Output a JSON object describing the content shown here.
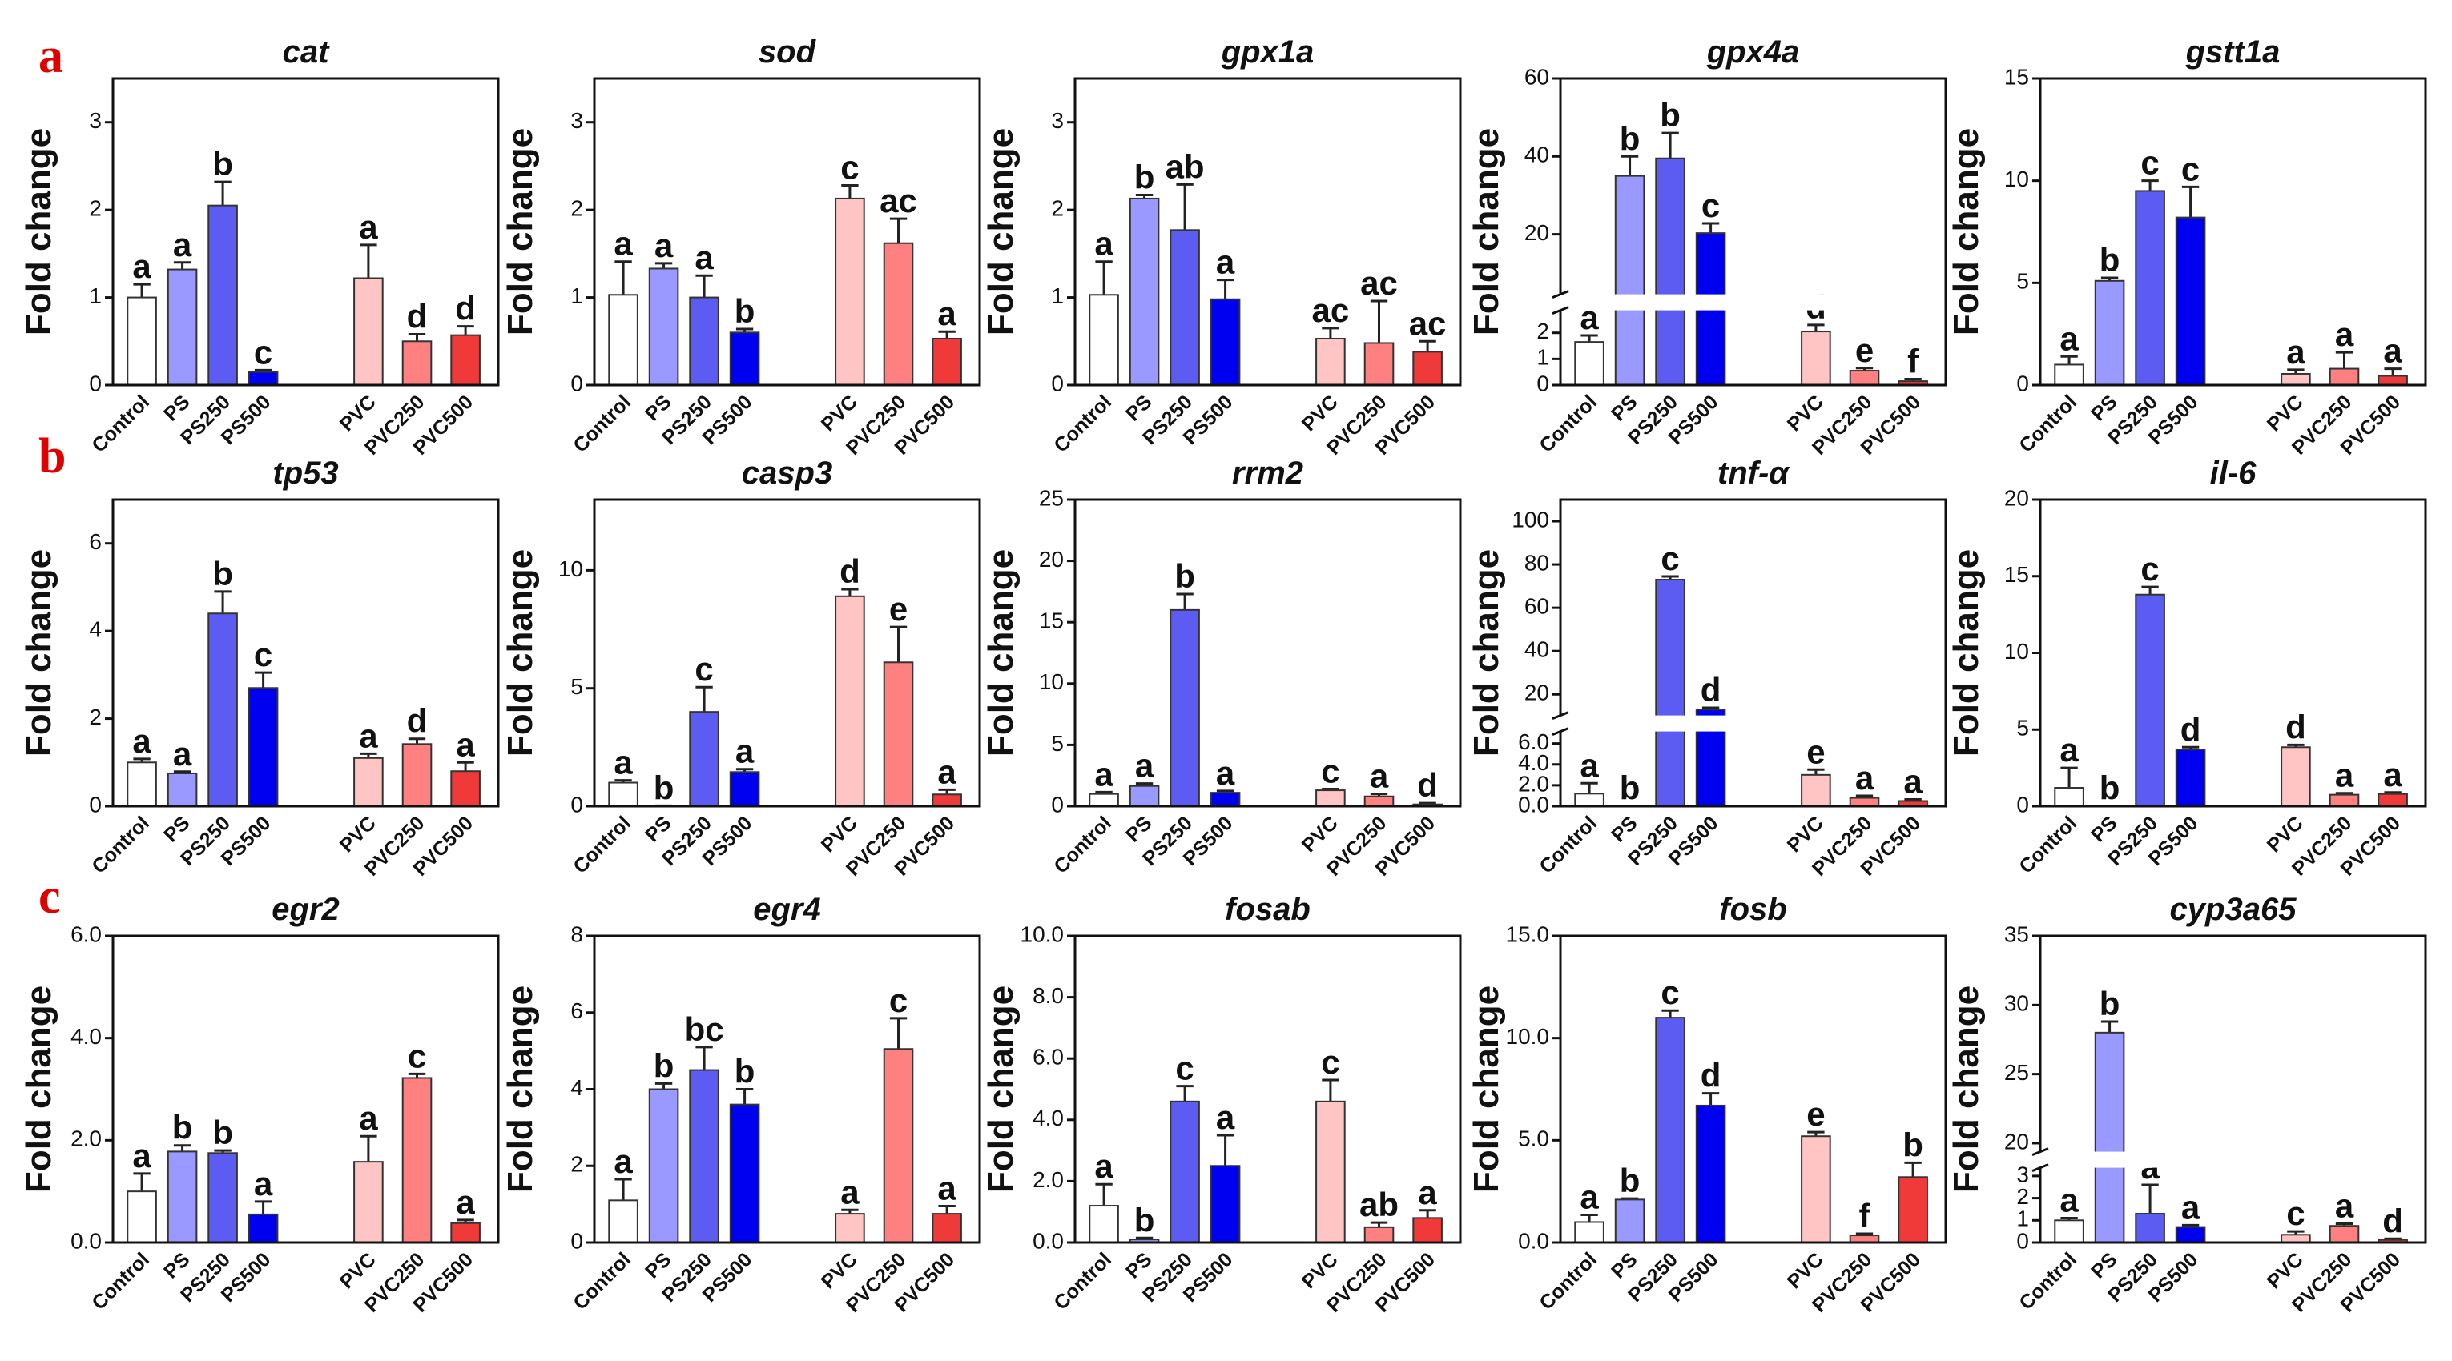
{
  "panel_labels": [
    "a",
    "b",
    "c"
  ],
  "chart_data": [
    {
      "type": "bar",
      "title": "cat",
      "ylabel": "Fold change",
      "categories": [
        "Control",
        "PS",
        "PS250",
        "PS500",
        "PVC",
        "PVC250",
        "PVC500"
      ],
      "values": [
        1.0,
        1.32,
        2.05,
        0.15,
        1.22,
        0.5,
        0.57
      ],
      "errors": [
        0.15,
        0.08,
        0.27,
        0.02,
        0.38,
        0.08,
        0.1
      ],
      "annotations": [
        "a",
        "a",
        "b",
        "c",
        "a",
        "d",
        "d"
      ],
      "colors": [
        "#ffffff",
        "#9999ff",
        "#5c5cf2",
        "#0000f0",
        "#ffc4c4",
        "#ff8080",
        "#f03a3a"
      ],
      "ylim": [
        0,
        3.5
      ],
      "yticks": [
        0,
        1,
        2,
        3
      ]
    },
    {
      "type": "bar",
      "title": "sod",
      "ylabel": "Fold change",
      "categories": [
        "Control",
        "PS",
        "PS250",
        "PS500",
        "PVC",
        "PVC250",
        "PVC500"
      ],
      "values": [
        1.03,
        1.33,
        1.0,
        0.6,
        2.13,
        1.62,
        0.53
      ],
      "errors": [
        0.38,
        0.06,
        0.25,
        0.04,
        0.15,
        0.28,
        0.08
      ],
      "annotations": [
        "a",
        "a",
        "a",
        "b",
        "c",
        "ac",
        "a"
      ],
      "colors": [
        "#ffffff",
        "#9999ff",
        "#5c5cf2",
        "#0000f0",
        "#ffc4c4",
        "#ff8080",
        "#f03a3a"
      ],
      "ylim": [
        0,
        3.5
      ],
      "yticks": [
        0,
        1,
        2,
        3
      ]
    },
    {
      "type": "bar",
      "title": "gpx1a",
      "ylabel": "Fold change",
      "categories": [
        "Control",
        "PS",
        "PS250",
        "PS500",
        "PVC",
        "PVC250",
        "PVC500"
      ],
      "values": [
        1.03,
        2.13,
        1.77,
        0.98,
        0.53,
        0.48,
        0.38
      ],
      "errors": [
        0.38,
        0.04,
        0.52,
        0.22,
        0.12,
        0.48,
        0.12
      ],
      "annotations": [
        "a",
        "b",
        "ab",
        "a",
        "ac",
        "ac",
        "ac"
      ],
      "colors": [
        "#ffffff",
        "#9999ff",
        "#5c5cf2",
        "#0000f0",
        "#ffc4c4",
        "#ff8080",
        "#f03a3a"
      ],
      "ylim": [
        0,
        3.5
      ],
      "yticks": [
        0,
        1,
        2,
        3
      ]
    },
    {
      "type": "bar",
      "title": "gpx4a",
      "ylabel": "Fold change",
      "categories": [
        "Control",
        "PS",
        "PS250",
        "PS500",
        "PVC",
        "PVC250",
        "PVC500"
      ],
      "values": [
        1.65,
        35,
        39.5,
        20.3,
        2.05,
        0.55,
        0.15
      ],
      "errors": [
        0.25,
        5,
        6.5,
        2.5,
        0.25,
        0.1,
        0.08
      ],
      "annotations": [
        "a",
        "b",
        "b",
        "c",
        "d",
        "e",
        "f"
      ],
      "colors": [
        "#ffffff",
        "#9999ff",
        "#5c5cf2",
        "#0000f0",
        "#ffc4c4",
        "#ff8080",
        "#f03a3a"
      ],
      "ylim": [
        0,
        60
      ],
      "ybreak": [
        2.8,
        5
      ],
      "yticks": [
        0,
        1,
        2,
        20,
        40,
        60
      ]
    },
    {
      "type": "bar",
      "title": "gstt1a",
      "ylabel": "Fold change",
      "categories": [
        "Control",
        "PS",
        "PS250",
        "PS500",
        "PVC",
        "PVC250",
        "PVC500"
      ],
      "values": [
        1.0,
        5.1,
        9.5,
        8.2,
        0.55,
        0.8,
        0.45
      ],
      "errors": [
        0.4,
        0.15,
        0.5,
        1.5,
        0.2,
        0.8,
        0.35
      ],
      "annotations": [
        "a",
        "b",
        "c",
        "c",
        "a",
        "a",
        "a"
      ],
      "colors": [
        "#ffffff",
        "#9999ff",
        "#5c5cf2",
        "#0000f0",
        "#ffc4c4",
        "#ff8080",
        "#f03a3a"
      ],
      "ylim": [
        0,
        15
      ],
      "yticks": [
        0,
        5,
        10,
        15
      ]
    },
    {
      "type": "bar",
      "title": "tp53",
      "ylabel": "Fold change",
      "categories": [
        "Control",
        "PS",
        "PS250",
        "PS500",
        "PVC",
        "PVC250",
        "PVC500"
      ],
      "values": [
        1.0,
        0.75,
        4.4,
        2.7,
        1.1,
        1.42,
        0.8
      ],
      "errors": [
        0.08,
        0.04,
        0.5,
        0.35,
        0.1,
        0.12,
        0.2
      ],
      "annotations": [
        "a",
        "a",
        "b",
        "c",
        "a",
        "d",
        "a"
      ],
      "colors": [
        "#ffffff",
        "#9999ff",
        "#5c5cf2",
        "#0000f0",
        "#ffc4c4",
        "#ff8080",
        "#f03a3a"
      ],
      "ylim": [
        0,
        7
      ],
      "yticks": [
        0,
        2,
        4,
        6
      ]
    },
    {
      "type": "bar",
      "title": "casp3",
      "ylabel": "Fold change",
      "categories": [
        "Control",
        "PS",
        "PS250",
        "PS500",
        "PVC",
        "PVC250",
        "PVC500"
      ],
      "values": [
        1.0,
        0.02,
        4.0,
        1.45,
        8.9,
        6.1,
        0.5
      ],
      "errors": [
        0.1,
        0,
        1.05,
        0.12,
        0.3,
        1.5,
        0.2
      ],
      "annotations": [
        "a",
        "b",
        "c",
        "a",
        "d",
        "e",
        "a"
      ],
      "colors": [
        "#ffffff",
        "#9999ff",
        "#5c5cf2",
        "#0000f0",
        "#ffc4c4",
        "#ff8080",
        "#f03a3a"
      ],
      "ylim": [
        0,
        13
      ],
      "yticks": [
        0,
        5,
        10
      ]
    },
    {
      "type": "bar",
      "title": "rrm2",
      "ylabel": "Fold change",
      "categories": [
        "Control",
        "PS",
        "PS250",
        "PS500",
        "PVC",
        "PVC250",
        "PVC500"
      ],
      "values": [
        1.0,
        1.65,
        16.0,
        1.1,
        1.3,
        0.8,
        0.15
      ],
      "errors": [
        0.15,
        0.2,
        1.3,
        0.15,
        0.1,
        0.2,
        0.1
      ],
      "annotations": [
        "a",
        "a",
        "b",
        "a",
        "c",
        "a",
        "d"
      ],
      "colors": [
        "#ffffff",
        "#9999ff",
        "#5c5cf2",
        "#0000f0",
        "#ffc4c4",
        "#ff8080",
        "#f03a3a"
      ],
      "ylim": [
        0,
        25
      ],
      "yticks": [
        0,
        5,
        10,
        15,
        20,
        25
      ]
    },
    {
      "type": "bar",
      "title": "tnf-α",
      "ylabel": "Fold change",
      "categories": [
        "Control",
        "PS",
        "PS250",
        "PS500",
        "PVC",
        "PVC250",
        "PVC500"
      ],
      "values": [
        1.2,
        0.02,
        73,
        13,
        3.0,
        0.8,
        0.5
      ],
      "errors": [
        1.0,
        0,
        1.5,
        0.8,
        0.5,
        0.2,
        0.15
      ],
      "annotations": [
        "a",
        "b",
        "c",
        "d",
        "e",
        "a",
        "a"
      ],
      "colors": [
        "#ffffff",
        "#9999ff",
        "#5c5cf2",
        "#0000f0",
        "#ffc4c4",
        "#ff8080",
        "#f03a3a"
      ],
      "ylim": [
        0,
        110
      ],
      "ybreak": [
        7,
        11
      ],
      "yticks": [
        {
          "value": 0,
          "label": "0.0"
        },
        {
          "value": 2,
          "label": "2.0"
        },
        {
          "value": 4,
          "label": "4.0"
        },
        {
          "value": 6,
          "label": "6.0"
        },
        20,
        40,
        60,
        80,
        100
      ]
    },
    {
      "type": "bar",
      "title": "il-6",
      "ylabel": "Fold change",
      "categories": [
        "Control",
        "PS",
        "PS250",
        "PS500",
        "PVC",
        "PVC250",
        "PVC500"
      ],
      "values": [
        1.2,
        0.02,
        13.8,
        3.7,
        3.85,
        0.75,
        0.8
      ],
      "errors": [
        1.3,
        0,
        0.5,
        0.15,
        0.15,
        0.1,
        0.1
      ],
      "annotations": [
        "a",
        "b",
        "c",
        "d",
        "d",
        "a",
        "a"
      ],
      "colors": [
        "#ffffff",
        "#9999ff",
        "#5c5cf2",
        "#0000f0",
        "#ffc4c4",
        "#ff8080",
        "#f03a3a"
      ],
      "ylim": [
        0,
        20
      ],
      "yticks": [
        0,
        5,
        10,
        15,
        20
      ]
    },
    {
      "type": "bar",
      "title": "egr2",
      "ylabel": "Fold change",
      "categories": [
        "Control",
        "PS",
        "PS250",
        "PS500",
        "PVC",
        "PVC250",
        "PVC500"
      ],
      "values": [
        1.0,
        1.78,
        1.75,
        0.55,
        1.58,
        3.22,
        0.38
      ],
      "errors": [
        0.35,
        0.12,
        0.05,
        0.25,
        0.5,
        0.08,
        0.06
      ],
      "annotations": [
        "a",
        "b",
        "b",
        "a",
        "a",
        "c",
        "a"
      ],
      "colors": [
        "#ffffff",
        "#9999ff",
        "#5c5cf2",
        "#0000f0",
        "#ffc4c4",
        "#ff8080",
        "#f03a3a"
      ],
      "ylim": [
        0,
        6
      ],
      "yticks": [
        {
          "value": 0,
          "label": "0.0"
        },
        {
          "value": 2,
          "label": "2.0"
        },
        {
          "value": 4,
          "label": "4.0"
        },
        {
          "value": 6,
          "label": "6.0"
        }
      ]
    },
    {
      "type": "bar",
      "title": "egr4",
      "ylabel": "Fold change",
      "categories": [
        "Control",
        "PS",
        "PS250",
        "PS500",
        "PVC",
        "PVC250",
        "PVC500"
      ],
      "values": [
        1.1,
        4.0,
        4.5,
        3.6,
        0.75,
        5.05,
        0.75
      ],
      "errors": [
        0.55,
        0.15,
        0.6,
        0.4,
        0.1,
        0.8,
        0.2
      ],
      "annotations": [
        "a",
        "b",
        "bc",
        "b",
        "a",
        "c",
        "a"
      ],
      "colors": [
        "#ffffff",
        "#9999ff",
        "#5c5cf2",
        "#0000f0",
        "#ffc4c4",
        "#ff8080",
        "#f03a3a"
      ],
      "ylim": [
        0,
        8
      ],
      "yticks": [
        0,
        2,
        4,
        6,
        8
      ]
    },
    {
      "type": "bar",
      "title": "fosab",
      "ylabel": "Fold change",
      "categories": [
        "Control",
        "PS",
        "PS250",
        "PS500",
        "PVC",
        "PVC250",
        "PVC500"
      ],
      "values": [
        1.2,
        0.1,
        4.6,
        2.5,
        4.6,
        0.5,
        0.8
      ],
      "errors": [
        0.7,
        0.05,
        0.5,
        1.0,
        0.7,
        0.15,
        0.25
      ],
      "annotations": [
        "a",
        "b",
        "c",
        "a",
        "c",
        "ab",
        "a"
      ],
      "colors": [
        "#ffffff",
        "#9999ff",
        "#5c5cf2",
        "#0000f0",
        "#ffc4c4",
        "#ff8080",
        "#f03a3a"
      ],
      "ylim": [
        0,
        10
      ],
      "yticks": [
        {
          "value": 0,
          "label": "0.0"
        },
        {
          "value": 2,
          "label": "2.0"
        },
        {
          "value": 4,
          "label": "4.0"
        },
        {
          "value": 6,
          "label": "6.0"
        },
        {
          "value": 8,
          "label": "8.0"
        },
        {
          "value": 10,
          "label": "10.0"
        }
      ]
    },
    {
      "type": "bar",
      "title": "fosb",
      "ylabel": "Fold change",
      "categories": [
        "Control",
        "PS",
        "PS250",
        "PS500",
        "PVC",
        "PVC250",
        "PVC500"
      ],
      "values": [
        1.0,
        2.1,
        11.0,
        6.7,
        5.2,
        0.35,
        3.2
      ],
      "errors": [
        0.35,
        0.05,
        0.35,
        0.6,
        0.2,
        0.08,
        0.7
      ],
      "annotations": [
        "a",
        "b",
        "c",
        "d",
        "e",
        "f",
        "b"
      ],
      "colors": [
        "#ffffff",
        "#9999ff",
        "#5c5cf2",
        "#0000f0",
        "#ffc4c4",
        "#ff8080",
        "#f03a3a"
      ],
      "ylim": [
        0,
        15
      ],
      "yticks": [
        {
          "value": 0,
          "label": "0.0"
        },
        {
          "value": 5,
          "label": "5.0"
        },
        {
          "value": 10,
          "label": "10.0"
        },
        {
          "value": 15,
          "label": "15.0"
        }
      ]
    },
    {
      "type": "bar",
      "title": "cyp3a65",
      "ylabel": "Fold change",
      "categories": [
        "Control",
        "PS",
        "PS250",
        "PS500",
        "PVC",
        "PVC250",
        "PVC500"
      ],
      "values": [
        1.0,
        28,
        1.3,
        0.7,
        0.35,
        0.75,
        0.12
      ],
      "errors": [
        0.1,
        0.8,
        1.3,
        0.08,
        0.15,
        0.1,
        0.05
      ],
      "annotations": [
        "a",
        "b",
        "a",
        "a",
        "c",
        "a",
        "d"
      ],
      "colors": [
        "#ffffff",
        "#9999ff",
        "#5c5cf2",
        "#0000f0",
        "#ffc4c4",
        "#ff8080",
        "#f03a3a"
      ],
      "ylim": [
        0,
        35
      ],
      "ybreak": [
        3.3,
        19.5
      ],
      "yticks": [
        0,
        1,
        2,
        3,
        20,
        25,
        30,
        35
      ]
    }
  ]
}
